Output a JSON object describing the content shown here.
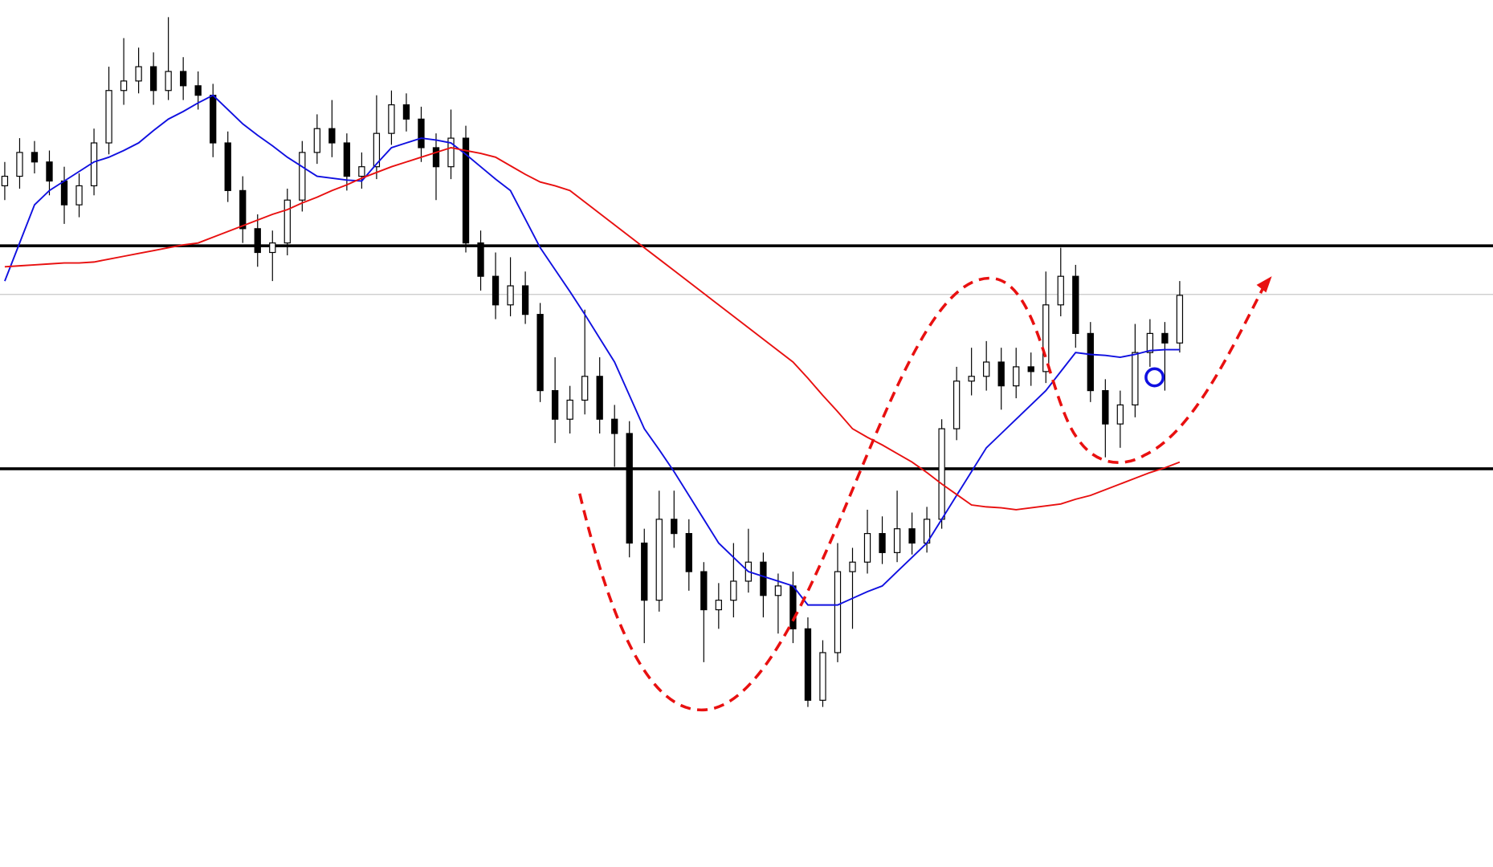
{
  "chart_data": {
    "type": "candlestick",
    "ylim": [
      0,
      910
    ],
    "ohlc": [
      [
        715,
        740,
        700,
        725
      ],
      [
        725,
        765,
        712,
        750
      ],
      [
        750,
        762,
        728,
        740
      ],
      [
        740,
        752,
        705,
        720
      ],
      [
        720,
        735,
        675,
        695
      ],
      [
        695,
        728,
        682,
        715
      ],
      [
        715,
        775,
        705,
        760
      ],
      [
        760,
        840,
        748,
        815
      ],
      [
        815,
        870,
        800,
        825
      ],
      [
        825,
        860,
        812,
        840
      ],
      [
        840,
        855,
        800,
        815
      ],
      [
        815,
        892,
        805,
        835
      ],
      [
        835,
        850,
        805,
        820
      ],
      [
        820,
        835,
        795,
        810
      ],
      [
        810,
        822,
        745,
        760
      ],
      [
        760,
        772,
        698,
        710
      ],
      [
        710,
        725,
        655,
        670
      ],
      [
        670,
        685,
        630,
        645
      ],
      [
        645,
        668,
        615,
        655
      ],
      [
        655,
        712,
        642,
        700
      ],
      [
        700,
        762,
        688,
        750
      ],
      [
        750,
        790,
        738,
        775
      ],
      [
        775,
        805,
        745,
        760
      ],
      [
        760,
        770,
        710,
        725
      ],
      [
        725,
        750,
        712,
        735
      ],
      [
        735,
        810,
        722,
        770
      ],
      [
        770,
        815,
        758,
        800
      ],
      [
        800,
        812,
        772,
        785
      ],
      [
        785,
        798,
        740,
        755
      ],
      [
        755,
        770,
        700,
        735
      ],
      [
        735,
        795,
        722,
        765
      ],
      [
        765,
        778,
        645,
        655
      ],
      [
        655,
        668,
        605,
        620
      ],
      [
        620,
        645,
        575,
        590
      ],
      [
        590,
        640,
        578,
        610
      ],
      [
        610,
        625,
        570,
        580
      ],
      [
        580,
        592,
        488,
        500
      ],
      [
        500,
        535,
        445,
        470
      ],
      [
        470,
        505,
        455,
        490
      ],
      [
        490,
        585,
        475,
        515
      ],
      [
        515,
        535,
        455,
        470
      ],
      [
        470,
        485,
        420,
        455
      ],
      [
        455,
        468,
        325,
        340
      ],
      [
        340,
        355,
        235,
        280
      ],
      [
        280,
        395,
        268,
        365
      ],
      [
        365,
        395,
        335,
        350
      ],
      [
        350,
        365,
        290,
        310
      ],
      [
        310,
        320,
        215,
        270
      ],
      [
        270,
        298,
        250,
        280
      ],
      [
        280,
        340,
        262,
        300
      ],
      [
        300,
        355,
        288,
        320
      ],
      [
        320,
        330,
        262,
        285
      ],
      [
        285,
        308,
        245,
        295
      ],
      [
        295,
        310,
        235,
        250
      ],
      [
        250,
        262,
        168,
        175
      ],
      [
        175,
        238,
        168,
        225
      ],
      [
        225,
        340,
        215,
        310
      ],
      [
        310,
        335,
        250,
        320
      ],
      [
        320,
        375,
        308,
        350
      ],
      [
        350,
        368,
        318,
        330
      ],
      [
        330,
        395,
        320,
        355
      ],
      [
        355,
        372,
        328,
        340
      ],
      [
        340,
        378,
        330,
        365
      ],
      [
        365,
        470,
        355,
        460
      ],
      [
        460,
        525,
        448,
        510
      ],
      [
        510,
        545,
        495,
        515
      ],
      [
        515,
        552,
        500,
        530
      ],
      [
        530,
        545,
        480,
        505
      ],
      [
        505,
        545,
        492,
        525
      ],
      [
        525,
        540,
        505,
        520
      ],
      [
        520,
        625,
        508,
        590
      ],
      [
        590,
        650,
        578,
        620
      ],
      [
        620,
        632,
        545,
        560
      ],
      [
        560,
        572,
        488,
        500
      ],
      [
        500,
        512,
        430,
        465
      ],
      [
        465,
        500,
        440,
        485
      ],
      [
        485,
        570,
        472,
        540
      ],
      [
        540,
        575,
        525,
        560
      ],
      [
        560,
        572,
        500,
        550
      ],
      [
        550,
        615,
        540,
        600
      ]
    ],
    "series": [
      {
        "color": "#1010e0",
        "values": [
          615,
          655,
          695,
          710,
          720,
          730,
          740,
          745,
          752,
          760,
          773,
          785,
          793,
          802,
          810,
          795,
          780,
          768,
          757,
          745,
          735,
          725,
          723,
          721,
          720,
          738,
          755,
          760,
          765,
          763,
          760,
          748,
          735,
          722,
          710,
          680,
          650,
          627,
          604,
          580,
          555,
          530,
          495,
          460,
          438,
          415,
          390,
          365,
          340,
          325,
          310,
          305,
          300,
          295,
          275,
          275,
          275,
          282,
          289,
          295,
          310,
          325,
          340,
          365,
          390,
          415,
          440,
          455,
          470,
          485,
          500,
          520,
          540,
          538,
          537,
          535,
          538,
          542,
          543,
          543
        ]
      },
      {
        "color": "#e81010",
        "values": [
          630,
          631,
          632,
          633,
          634,
          634,
          635,
          638,
          641,
          644,
          647,
          650,
          653,
          655,
          661,
          667,
          673,
          679,
          685,
          690,
          697,
          703,
          710,
          716,
          723,
          729,
          735,
          740,
          745,
          750,
          755,
          752,
          749,
          745,
          736,
          727,
          719,
          715,
          710,
          698,
          686,
          674,
          662,
          650,
          638,
          626,
          614,
          602,
          590,
          578,
          566,
          554,
          542,
          530,
          513,
          495,
          478,
          460,
          451,
          443,
          434,
          425,
          414,
          402,
          391,
          380,
          378,
          377,
          375,
          377,
          379,
          381,
          386,
          390,
          396,
          402,
          408,
          414,
          419,
          425
        ]
      }
    ],
    "hlines": [
      {
        "value": 652,
        "color": "#000000"
      },
      {
        "value": 418,
        "color": "#000000"
      },
      {
        "value": 601,
        "color": "#c8c8c8"
      }
    ]
  }
}
